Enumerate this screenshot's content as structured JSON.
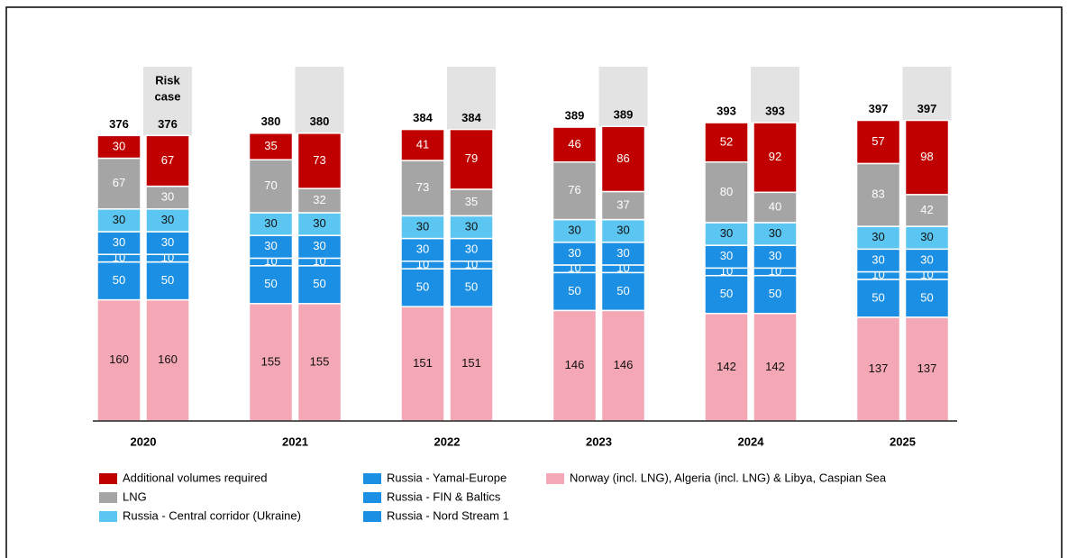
{
  "chart_data": {
    "type": "bar",
    "stacked": true,
    "categories": [
      "2020",
      "2021",
      "2022",
      "2023",
      "2024",
      "2025"
    ],
    "risk_label": [
      "Risk",
      "case"
    ],
    "totals": [
      376,
      380,
      384,
      389,
      393,
      397
    ],
    "risk_totals": [
      376,
      380,
      384,
      389,
      393,
      397
    ],
    "series": [
      {
        "name": "Additional volumes required",
        "color": "#c00000",
        "values": [
          30,
          35,
          41,
          46,
          52,
          57
        ],
        "risk_values": [
          67,
          73,
          79,
          86,
          92,
          98
        ]
      },
      {
        "name": "LNG",
        "color": "#a5a5a5",
        "values": [
          67,
          70,
          73,
          76,
          80,
          83
        ],
        "risk_values": [
          30,
          32,
          35,
          37,
          40,
          42
        ]
      },
      {
        "name": "Russia - Central corridor (Ukraine)",
        "color": "#5cc6f2",
        "values": [
          30,
          30,
          30,
          30,
          30,
          30
        ],
        "risk_values": [
          30,
          30,
          30,
          30,
          30,
          30
        ]
      },
      {
        "name": "Russia - Yamal-Europe",
        "color": "#1a8fe3",
        "values": [
          30,
          30,
          30,
          30,
          30,
          30
        ],
        "risk_values": [
          30,
          30,
          30,
          30,
          30,
          30
        ]
      },
      {
        "name": "Russia - FIN & Baltics",
        "color": "#1a8fe3",
        "values": [
          10,
          10,
          10,
          10,
          10,
          10
        ],
        "risk_values": [
          10,
          10,
          10,
          10,
          10,
          10
        ]
      },
      {
        "name": "Russia - Nord Stream 1",
        "color": "#1a8fe3",
        "values": [
          50,
          50,
          50,
          50,
          50,
          50
        ],
        "risk_values": [
          50,
          50,
          50,
          50,
          50,
          50
        ]
      },
      {
        "name": "Norway (incl. LNG), Algeria (incl. LNG) & Libya, Caspian Sea",
        "color": "#f4a7b5",
        "values": [
          160,
          155,
          151,
          146,
          142,
          137
        ],
        "risk_values": [
          160,
          155,
          151,
          146,
          142,
          137
        ]
      }
    ]
  }
}
